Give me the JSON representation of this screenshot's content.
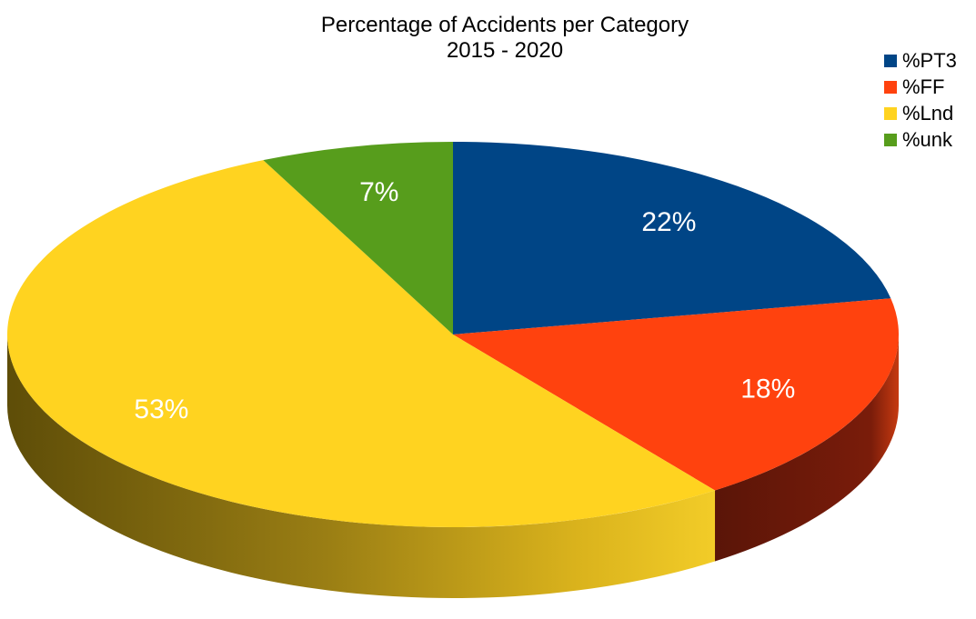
{
  "chart_data": {
    "type": "pie",
    "title": "Percentage of Accidents per Category",
    "subtitle": "2015 - 2020",
    "legend_position": "top-right",
    "slices": [
      {
        "name": "%PT3",
        "value": 22,
        "label": "22%",
        "color": "#004586",
        "side_color": "#002a52"
      },
      {
        "name": "%FF",
        "value": 18,
        "label": "18%",
        "color": "#ff420e",
        "side_color": "#6e1708"
      },
      {
        "name": "%Lnd",
        "value": 53,
        "label": "53%",
        "color": "#ffd320",
        "side_color": "#8a7010"
      },
      {
        "name": "%unk",
        "value": 7,
        "label": "7%",
        "color": "#579d1c",
        "side_color": "#2e5510"
      }
    ]
  }
}
